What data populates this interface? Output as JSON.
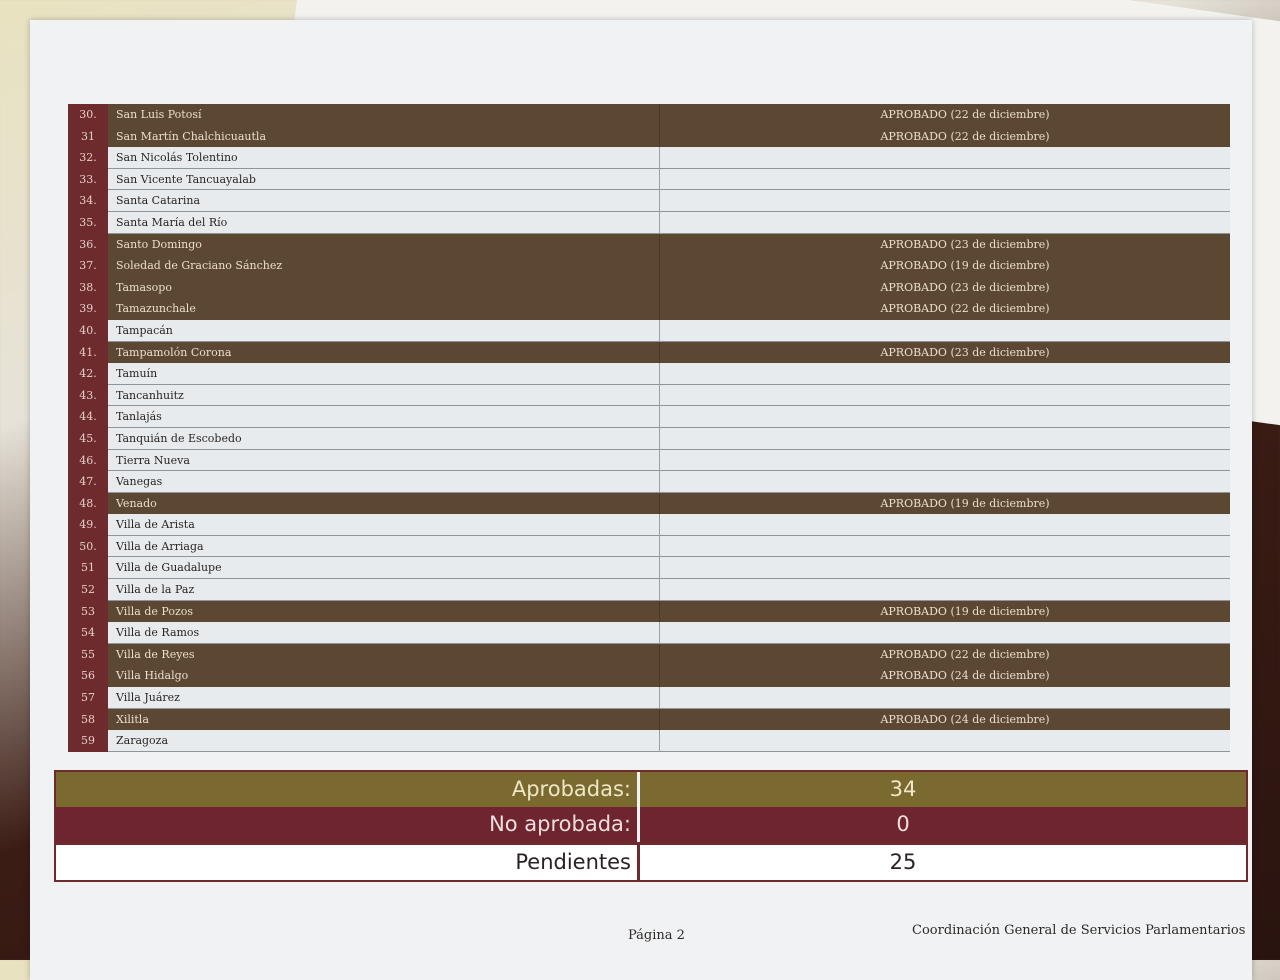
{
  "rows": [
    {
      "num": "30.",
      "name": "San Luis Potosí",
      "status": "APROBADO (22 de diciembre)",
      "approved": true
    },
    {
      "num": "31",
      "name": "San Martín Chalchicuautla",
      "status": "APROBADO (22 de diciembre)",
      "approved": true
    },
    {
      "num": "32.",
      "name": "San Nicolás Tolentino",
      "status": "",
      "approved": false
    },
    {
      "num": "33.",
      "name": "San Vicente Tancuayalab",
      "status": "",
      "approved": false
    },
    {
      "num": "34.",
      "name": "Santa Catarina",
      "status": "",
      "approved": false
    },
    {
      "num": "35.",
      "name": "Santa María del Río",
      "status": "",
      "approved": false
    },
    {
      "num": "36.",
      "name": "Santo Domingo",
      "status": "APROBADO (23 de diciembre)",
      "approved": true
    },
    {
      "num": "37.",
      "name": "Soledad de Graciano Sánchez",
      "status": "APROBADO (19 de diciembre)",
      "approved": true
    },
    {
      "num": "38.",
      "name": "Tamasopo",
      "status": "APROBADO (23 de diciembre)",
      "approved": true
    },
    {
      "num": "39.",
      "name": "Tamazunchale",
      "status": "APROBADO (22 de diciembre)",
      "approved": true
    },
    {
      "num": "40.",
      "name": "Tampacán",
      "status": "",
      "approved": false
    },
    {
      "num": "41.",
      "name": "Tampamolón Corona",
      "status": "APROBADO (23 de diciembre)",
      "approved": true
    },
    {
      "num": "42.",
      "name": "Tamuín",
      "status": "",
      "approved": false
    },
    {
      "num": "43.",
      "name": "Tancanhuitz",
      "status": "",
      "approved": false
    },
    {
      "num": "44.",
      "name": "Tanlajás",
      "status": "",
      "approved": false
    },
    {
      "num": "45.",
      "name": "Tanquián de Escobedo",
      "status": "",
      "approved": false
    },
    {
      "num": "46.",
      "name": "Tierra Nueva",
      "status": "",
      "approved": false
    },
    {
      "num": "47.",
      "name": "Vanegas",
      "status": "",
      "approved": false
    },
    {
      "num": "48.",
      "name": "Venado",
      "status": "APROBADO (19 de diciembre)",
      "approved": true
    },
    {
      "num": "49.",
      "name": "Villa de Arista",
      "status": "",
      "approved": false
    },
    {
      "num": "50.",
      "name": "Villa de Arriaga",
      "status": "",
      "approved": false
    },
    {
      "num": "51",
      "name": "Villa de Guadalupe",
      "status": "",
      "approved": false
    },
    {
      "num": "52",
      "name": "Villa de la Paz",
      "status": "",
      "approved": false
    },
    {
      "num": "53",
      "name": "Villa de Pozos",
      "status": "APROBADO (19 de diciembre)",
      "approved": true
    },
    {
      "num": "54",
      "name": "Villa de Ramos",
      "status": "",
      "approved": false
    },
    {
      "num": "55",
      "name": "Villa de Reyes",
      "status": "APROBADO (22 de diciembre)",
      "approved": true
    },
    {
      "num": "56",
      "name": "Villa Hidalgo",
      "status": "APROBADO (24 de diciembre)",
      "approved": true
    },
    {
      "num": "57",
      "name": "Villa Juárez",
      "status": "",
      "approved": false
    },
    {
      "num": "58",
      "name": "Xilitla",
      "status": "APROBADO (24 de diciembre)",
      "approved": true
    },
    {
      "num": "59",
      "name": "Zaragoza",
      "status": "",
      "approved": false
    }
  ],
  "summary": {
    "approved_label": "Aprobadas:",
    "approved_value": "34",
    "rejected_label": "No aprobada:",
    "rejected_value": "0",
    "pending_label": "Pendientes",
    "pending_value": "25"
  },
  "footer": {
    "page": "Página 2",
    "org": "Coordinación General de Servicios Parlamentarios"
  },
  "colors": {
    "approved_row": "#5c4733",
    "number_col": "#6d2b2d",
    "pending_row": "#e7ebee",
    "summary_approved": "#7b6a2f",
    "summary_rejected": "#6e2530"
  }
}
